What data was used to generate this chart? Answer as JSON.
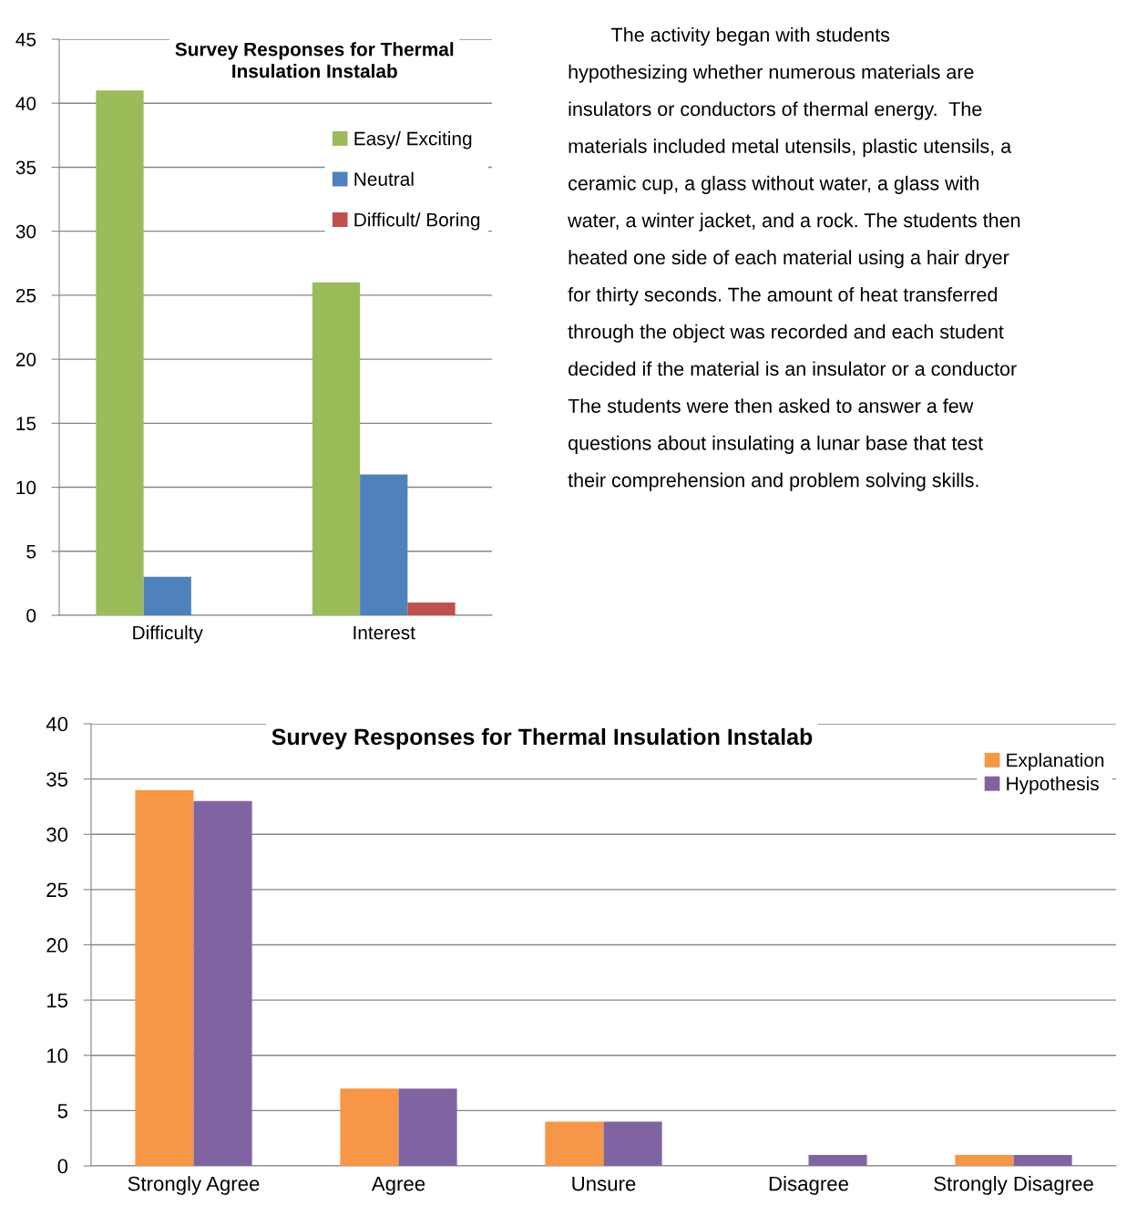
{
  "chart_data": [
    {
      "type": "bar",
      "title": "Survey Responses for Thermal\nInsulation Instalab",
      "categories": [
        "Difficulty",
        "Interest"
      ],
      "series": [
        {
          "name": "Easy/ Exciting",
          "color": "#9bbb59",
          "values": [
            41,
            26
          ]
        },
        {
          "name": "Neutral",
          "color": "#4f81bd",
          "values": [
            3,
            11
          ]
        },
        {
          "name": "Difficult/ Boring",
          "color": "#c0504d",
          "values": [
            0,
            1
          ]
        }
      ],
      "ylim": [
        0,
        45
      ],
      "yticks": [
        0,
        5,
        10,
        15,
        20,
        25,
        30,
        35,
        40,
        45
      ],
      "grid": "y",
      "legend": "top right"
    },
    {
      "type": "bar",
      "title": "Survey Responses for Thermal Insulation Instalab",
      "categories": [
        "Strongly Agree",
        "Agree",
        "Unsure",
        "Disagree",
        "Strongly Disagree"
      ],
      "series": [
        {
          "name": "Explanation",
          "color": "#f79646",
          "values": [
            34,
            7,
            4,
            0,
            1
          ]
        },
        {
          "name": "Hypothesis",
          "color": "#8064a2",
          "values": [
            33,
            7,
            4,
            1,
            1
          ]
        }
      ],
      "ylim": [
        0,
        40
      ],
      "yticks": [
        0,
        5,
        10,
        15,
        20,
        25,
        30,
        35,
        40
      ],
      "grid": "y",
      "legend": "top right"
    },
    {
      "type": "other",
      "annotations": [
        "        The activity began with students",
        "hypothesizing whether numerous materials are",
        "insulators or conductors of thermal energy.  The",
        "materials included metal utensils, plastic utensils, a",
        "ceramic cup, a glass without water, a glass with",
        "water, a winter jacket, and a rock. The students then",
        "heated one side of each material using a hair dryer",
        "for thirty seconds. The amount of heat transferred",
        "through the object was recorded and each student",
        "decided if the material is an insulator or a conductor",
        "The students were then asked to answer a few",
        "questions about insulating a lunar base that test",
        "their comprehension and problem solving skills."
      ]
    }
  ]
}
